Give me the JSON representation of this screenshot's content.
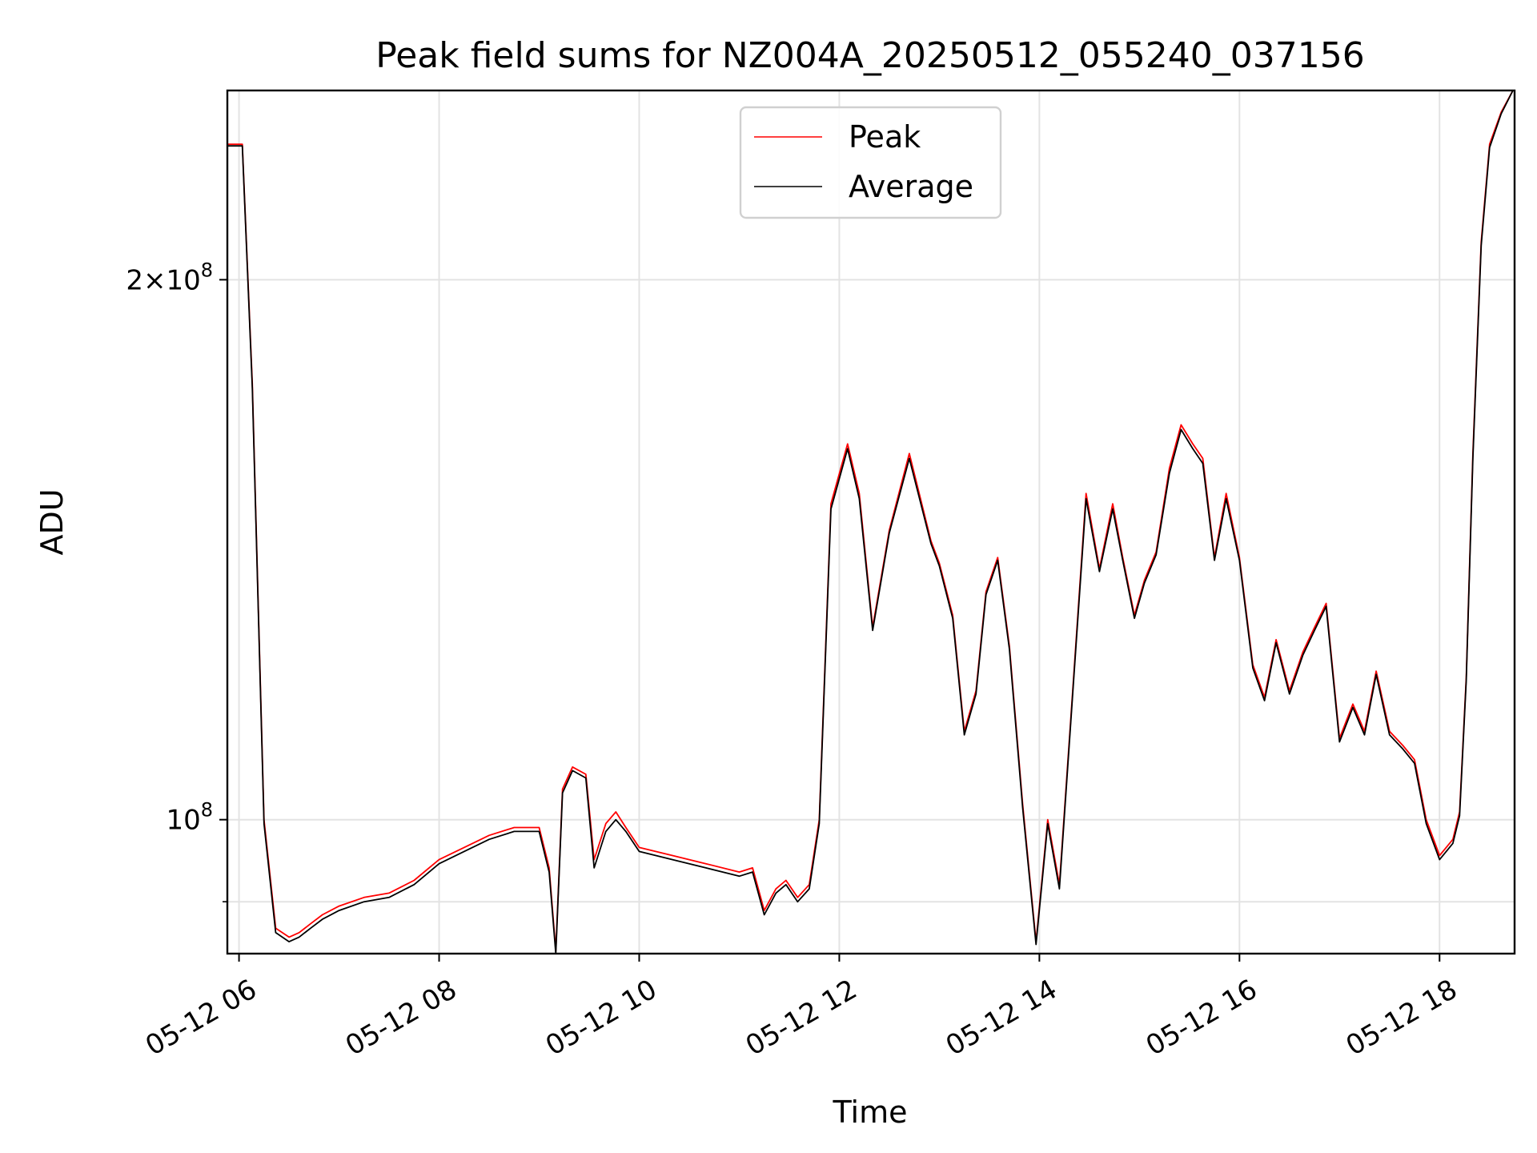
{
  "chart_data": {
    "type": "line",
    "title": "Peak field sums for NZ004A_20250512_055240_037156",
    "xlabel": "Time",
    "ylabel": "ADU",
    "y_scale": "log",
    "grid": true,
    "legend_placement": "top-center",
    "x_ticks": [
      "05-12 06",
      "05-12 08",
      "05-12 10",
      "05-12 12",
      "05-12 14",
      "05-12 16",
      "05-12 18"
    ],
    "y_ticks": [
      {
        "value": 100000000,
        "base": "10",
        "exp": "8",
        "coef": ""
      },
      {
        "value": 200000000,
        "base": "10",
        "exp": "8",
        "coef": "2"
      }
    ],
    "y_minor_ticks": [
      90000000
    ],
    "xlim": [
      "2025-05-12 05:53",
      "2025-05-12 18:45"
    ],
    "ylim": [
      84200000,
      255000000
    ],
    "series": [
      {
        "name": "Peak",
        "color": "#ff0000",
        "x": [
          "2025-05-12 05:53",
          "2025-05-12 06:02",
          "2025-05-12 06:08",
          "2025-05-12 06:15",
          "2025-05-12 06:22",
          "2025-05-12 06:30",
          "2025-05-12 06:36",
          "2025-05-12 06:43",
          "2025-05-12 06:50",
          "2025-05-12 07:00",
          "2025-05-12 07:15",
          "2025-05-12 07:30",
          "2025-05-12 07:45",
          "2025-05-12 08:00",
          "2025-05-12 08:15",
          "2025-05-12 08:30",
          "2025-05-12 08:45",
          "2025-05-12 09:00",
          "2025-05-12 09:06",
          "2025-05-12 09:10",
          "2025-05-12 09:14",
          "2025-05-12 09:20",
          "2025-05-12 09:28",
          "2025-05-12 09:33",
          "2025-05-12 09:40",
          "2025-05-12 09:46",
          "2025-05-12 09:52",
          "2025-05-12 10:00",
          "2025-05-12 10:20",
          "2025-05-12 10:40",
          "2025-05-12 11:00",
          "2025-05-12 11:08",
          "2025-05-12 11:15",
          "2025-05-12 11:22",
          "2025-05-12 11:28",
          "2025-05-12 11:35",
          "2025-05-12 11:42",
          "2025-05-12 11:48",
          "2025-05-12 11:55",
          "2025-05-12 12:05",
          "2025-05-12 12:12",
          "2025-05-12 12:20",
          "2025-05-12 12:30",
          "2025-05-12 12:42",
          "2025-05-12 12:55",
          "2025-05-12 13:00",
          "2025-05-12 13:08",
          "2025-05-12 13:15",
          "2025-05-12 13:22",
          "2025-05-12 13:28",
          "2025-05-12 13:35",
          "2025-05-12 13:42",
          "2025-05-12 13:50",
          "2025-05-12 13:58",
          "2025-05-12 14:05",
          "2025-05-12 14:12",
          "2025-05-12 14:20",
          "2025-05-12 14:28",
          "2025-05-12 14:36",
          "2025-05-12 14:44",
          "2025-05-12 14:50",
          "2025-05-12 14:57",
          "2025-05-12 15:03",
          "2025-05-12 15:10",
          "2025-05-12 15:18",
          "2025-05-12 15:25",
          "2025-05-12 15:32",
          "2025-05-12 15:38",
          "2025-05-12 15:45",
          "2025-05-12 15:52",
          "2025-05-12 16:00",
          "2025-05-12 16:08",
          "2025-05-12 16:15",
          "2025-05-12 16:22",
          "2025-05-12 16:30",
          "2025-05-12 16:38",
          "2025-05-12 16:45",
          "2025-05-12 16:52",
          "2025-05-12 17:00",
          "2025-05-12 17:08",
          "2025-05-12 17:15",
          "2025-05-12 17:22",
          "2025-05-12 17:30",
          "2025-05-12 17:38",
          "2025-05-12 17:45",
          "2025-05-12 17:52",
          "2025-05-12 18:00",
          "2025-05-12 18:08",
          "2025-05-12 18:12",
          "2025-05-12 18:16",
          "2025-05-12 18:20",
          "2025-05-12 18:25",
          "2025-05-12 18:30",
          "2025-05-12 18:37",
          "2025-05-12 18:44"
        ],
        "y": [
          238000000,
          238000000,
          175000000,
          100000000,
          87000000,
          86000000,
          86500000,
          87500000,
          88500000,
          89500000,
          90500000,
          91000000,
          92500000,
          95000000,
          96500000,
          98000000,
          99000000,
          99000000,
          94000000,
          84500000,
          104000000,
          107000000,
          106000000,
          95000000,
          99500000,
          101000000,
          99000000,
          96500000,
          95500000,
          94500000,
          93500000,
          94000000,
          89000000,
          91500000,
          92500000,
          90500000,
          92000000,
          100000000,
          150000000,
          162000000,
          152000000,
          128000000,
          145000000,
          160000000,
          143000000,
          139000000,
          130000000,
          112000000,
          118000000,
          134000000,
          140000000,
          125000000,
          102000000,
          85500000,
          100000000,
          92000000,
          118000000,
          152000000,
          138000000,
          150000000,
          140000000,
          130000000,
          136000000,
          141000000,
          157000000,
          166000000,
          162000000,
          159000000,
          140000000,
          152000000,
          140000000,
          122000000,
          117000000,
          126000000,
          118000000,
          124000000,
          128000000,
          132000000,
          111000000,
          116000000,
          112000000,
          121000000,
          112000000,
          110000000,
          108000000,
          100000000,
          95500000,
          97500000,
          101000000,
          120000000,
          160000000,
          210000000,
          238000000,
          248000000,
          255000000
        ]
      },
      {
        "name": "Average",
        "color": "#000000",
        "x": [
          "2025-05-12 05:53",
          "2025-05-12 06:02",
          "2025-05-12 06:08",
          "2025-05-12 06:15",
          "2025-05-12 06:22",
          "2025-05-12 06:30",
          "2025-05-12 06:36",
          "2025-05-12 06:43",
          "2025-05-12 06:50",
          "2025-05-12 07:00",
          "2025-05-12 07:15",
          "2025-05-12 07:30",
          "2025-05-12 07:45",
          "2025-05-12 08:00",
          "2025-05-12 08:15",
          "2025-05-12 08:30",
          "2025-05-12 08:45",
          "2025-05-12 09:00",
          "2025-05-12 09:06",
          "2025-05-12 09:10",
          "2025-05-12 09:14",
          "2025-05-12 09:20",
          "2025-05-12 09:28",
          "2025-05-12 09:33",
          "2025-05-12 09:40",
          "2025-05-12 09:46",
          "2025-05-12 09:52",
          "2025-05-12 10:00",
          "2025-05-12 10:20",
          "2025-05-12 10:40",
          "2025-05-12 11:00",
          "2025-05-12 11:08",
          "2025-05-12 11:15",
          "2025-05-12 11:22",
          "2025-05-12 11:28",
          "2025-05-12 11:35",
          "2025-05-12 11:42",
          "2025-05-12 11:48",
          "2025-05-12 11:55",
          "2025-05-12 12:05",
          "2025-05-12 12:12",
          "2025-05-12 12:20",
          "2025-05-12 12:30",
          "2025-05-12 12:42",
          "2025-05-12 12:55",
          "2025-05-12 13:00",
          "2025-05-12 13:08",
          "2025-05-12 13:15",
          "2025-05-12 13:22",
          "2025-05-12 13:28",
          "2025-05-12 13:35",
          "2025-05-12 13:42",
          "2025-05-12 13:50",
          "2025-05-12 13:58",
          "2025-05-12 14:05",
          "2025-05-12 14:12",
          "2025-05-12 14:20",
          "2025-05-12 14:28",
          "2025-05-12 14:36",
          "2025-05-12 14:44",
          "2025-05-12 14:50",
          "2025-05-12 14:57",
          "2025-05-12 15:03",
          "2025-05-12 15:10",
          "2025-05-12 15:18",
          "2025-05-12 15:25",
          "2025-05-12 15:32",
          "2025-05-12 15:38",
          "2025-05-12 15:45",
          "2025-05-12 15:52",
          "2025-05-12 16:00",
          "2025-05-12 16:08",
          "2025-05-12 16:15",
          "2025-05-12 16:22",
          "2025-05-12 16:30",
          "2025-05-12 16:38",
          "2025-05-12 16:45",
          "2025-05-12 16:52",
          "2025-05-12 17:00",
          "2025-05-12 17:08",
          "2025-05-12 17:15",
          "2025-05-12 17:22",
          "2025-05-12 17:30",
          "2025-05-12 17:38",
          "2025-05-12 17:45",
          "2025-05-12 17:52",
          "2025-05-12 18:00",
          "2025-05-12 18:08",
          "2025-05-12 18:12",
          "2025-05-12 18:16",
          "2025-05-12 18:20",
          "2025-05-12 18:25",
          "2025-05-12 18:30",
          "2025-05-12 18:37",
          "2025-05-12 18:44"
        ],
        "y": [
          237500000,
          237500000,
          174000000,
          99500000,
          86500000,
          85500000,
          86000000,
          87000000,
          88000000,
          89000000,
          90000000,
          90500000,
          92000000,
          94500000,
          96000000,
          97500000,
          98500000,
          98500000,
          93500000,
          84200000,
          103500000,
          106500000,
          105500000,
          94000000,
          98500000,
          100000000,
          98500000,
          96000000,
          95000000,
          94000000,
          93000000,
          93500000,
          88500000,
          91000000,
          92000000,
          90000000,
          91500000,
          99500000,
          149000000,
          161000000,
          151000000,
          127500000,
          144500000,
          159000000,
          142500000,
          138500000,
          129500000,
          111500000,
          117500000,
          133500000,
          139500000,
          124500000,
          101500000,
          85200000,
          99500000,
          91500000,
          117500000,
          151000000,
          137500000,
          149000000,
          139500000,
          129500000,
          135500000,
          140500000,
          156000000,
          165000000,
          161000000,
          158000000,
          139500000,
          151000000,
          139500000,
          121500000,
          116500000,
          125500000,
          117500000,
          123500000,
          127500000,
          131500000,
          110500000,
          115500000,
          111500000,
          120500000,
          111500000,
          109500000,
          107500000,
          99500000,
          95000000,
          97000000,
          100500000,
          119500000,
          159000000,
          209000000,
          237000000,
          247500000,
          255000000
        ]
      }
    ]
  }
}
